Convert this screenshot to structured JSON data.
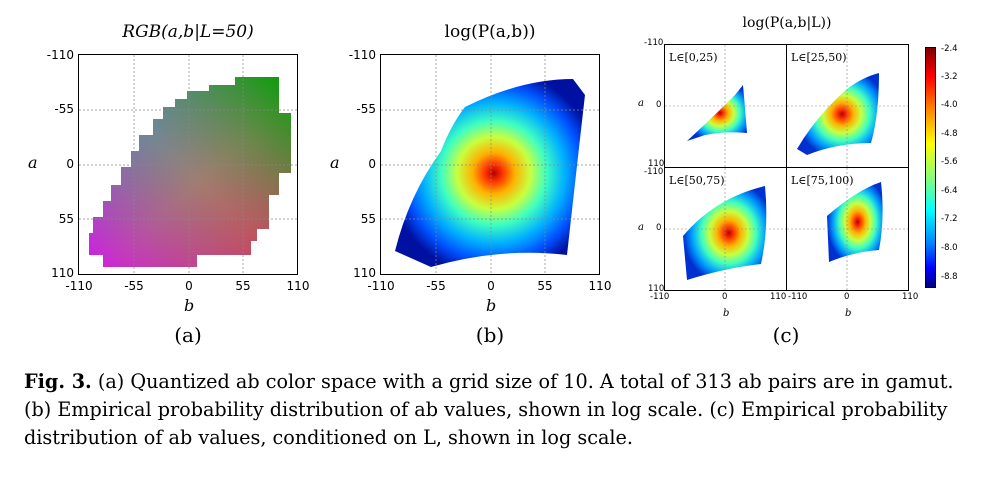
{
  "panels": {
    "a": {
      "title": "RGB(a,b|L=50)",
      "y_label": "a",
      "x_label": "b",
      "y_ticks": [
        "-110",
        "-55",
        "0",
        "55",
        "110"
      ],
      "x_ticks": [
        "-110",
        "-55",
        "0",
        "55",
        "110"
      ],
      "sublabel": "(a)"
    },
    "b": {
      "title": "log(P(a,b))",
      "y_label": "a",
      "x_label": "b",
      "y_ticks": [
        "-110",
        "-55",
        "0",
        "55",
        "110"
      ],
      "x_ticks": [
        "-110",
        "-55",
        "0",
        "55",
        "110"
      ],
      "sublabel": "(b)"
    },
    "c": {
      "title": "log(P(a,b|L))",
      "y_label": "a",
      "x_label": "b",
      "subplots": [
        "L∈[0,25)",
        "L∈[25,50)",
        "L∈[50,75)",
        "L∈[75,100)"
      ],
      "y_ticks_top": [
        "-110",
        "0",
        "110"
      ],
      "y_ticks_bottom": [
        "-110",
        "0",
        "110"
      ],
      "x_ticks_left": [
        "-110",
        "0",
        "110"
      ],
      "x_ticks_right": [
        "-110",
        "0",
        "110"
      ],
      "colorbar_ticks": [
        "-2.4",
        "-3.2",
        "-4.0",
        "-4.8",
        "-5.6",
        "-6.4",
        "-7.2",
        "-8.0",
        "-8.8"
      ],
      "sublabel": "(c)"
    }
  },
  "caption": {
    "label": "Fig. 3.",
    "text": "(a) Quantized ab color space with a grid size of 10. A total of 313 ab pairs are in gamut. (b) Empirical probability distribution of ab values, shown in log scale. (c) Empirical probability distribution of ab values, conditioned on L, shown in log scale."
  }
}
